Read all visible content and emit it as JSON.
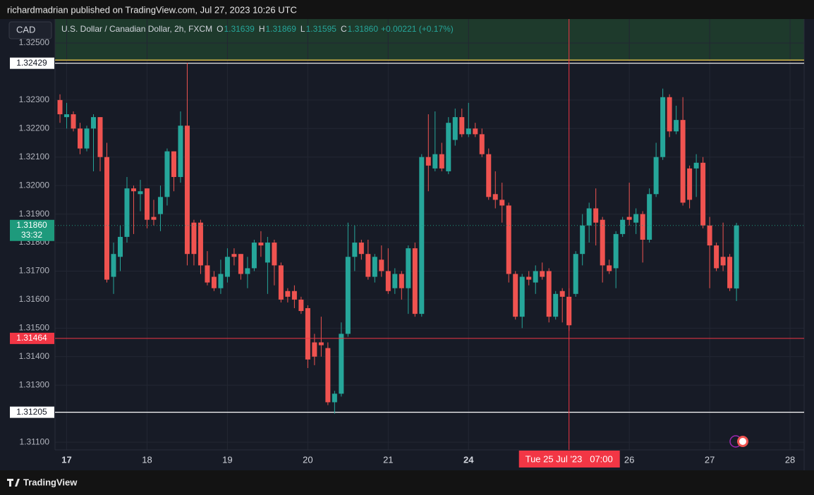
{
  "header": "richardmadrian published on TradingView.com, Jul 27, 2023 10:26 UTC",
  "currency": "CAD",
  "footer": "TradingView",
  "chart_data": {
    "type": "candlestick",
    "legend": {
      "symbol": "U.S. Dollar / Canadian Dollar, 2h, FXCM",
      "ohlc": [
        {
          "name": "O",
          "value": 1.31639
        },
        {
          "name": "H",
          "value": 1.31869
        },
        {
          "name": "L",
          "value": 1.31595
        },
        {
          "name": "C",
          "value": 1.3186,
          "label": "1.31860"
        }
      ],
      "change": "+0.00221 (+0.17%)"
    },
    "up_color": "#26a69a",
    "down_color": "#ef5350",
    "open": [
      1.323,
      1.3224,
      1.3225,
      1.322,
      1.3213,
      1.322,
      1.3224,
      1.321,
      1.3168,
      1.3175,
      1.3182,
      1.3199,
      1.3197,
      1.3199,
      1.3189,
      1.319,
      1.3196,
      1.3212,
      1.3203,
      1.3221,
      1.3187,
      1.3187,
      1.3172,
      1.3168,
      1.3164,
      1.3168,
      1.3176,
      1.3176,
      1.3169,
      1.3171,
      1.318,
      1.3173,
      1.318,
      1.3172,
      1.3163,
      1.3163,
      1.316,
      1.3157,
      1.3145,
      1.3145,
      1.3143,
      1.3124,
      1.3127,
      1.3148,
      1.3175,
      1.318,
      1.3176,
      1.3168,
      1.3174,
      1.317,
      1.3164,
      1.3169,
      1.3164,
      1.3178,
      1.3155,
      1.321,
      1.3206,
      1.3211,
      1.3205,
      1.3216,
      1.3224,
      1.3218,
      1.322,
      1.3218,
      1.3211,
      1.3197,
      1.3195,
      1.3193,
      1.3169,
      1.3154,
      1.3168,
      1.3166,
      1.317,
      1.317,
      1.3154,
      1.3163,
      1.3161,
      1.3162,
      1.3176,
      1.3186,
      1.3192,
      1.3188,
      1.3172,
      1.3171,
      1.3183,
      1.3189,
      1.3187,
      1.319,
      1.3181,
      1.3197,
      1.321,
      1.3231,
      1.3219,
      1.3223,
      1.3206,
      1.3206,
      1.3208,
      1.3186,
      1.3179,
      1.3175,
      1.3175,
      1.31639
    ],
    "high": [
      1.3232,
      1.3229,
      1.3226,
      1.3222,
      1.3221,
      1.3225,
      1.3224,
      1.3215,
      1.318,
      1.3186,
      1.3203,
      1.32,
      1.3202,
      1.3199,
      1.3195,
      1.32,
      1.3213,
      1.3212,
      1.3226,
      1.3243,
      1.3188,
      1.3188,
      1.3177,
      1.317,
      1.3174,
      1.3178,
      1.3178,
      1.3176,
      1.3175,
      1.3181,
      1.3184,
      1.3182,
      1.3181,
      1.3173,
      1.3164,
      1.3165,
      1.3161,
      1.3158,
      1.3148,
      1.3154,
      1.3145,
      1.3128,
      1.3152,
      1.3187,
      1.3186,
      1.3181,
      1.3181,
      1.3176,
      1.3179,
      1.3178,
      1.3171,
      1.317,
      1.3179,
      1.318,
      1.3211,
      1.3225,
      1.3226,
      1.3215,
      1.3224,
      1.3227,
      1.3227,
      1.3229,
      1.3222,
      1.322,
      1.3213,
      1.3205,
      1.3201,
      1.3194,
      1.317,
      1.3169,
      1.317,
      1.3172,
      1.3173,
      1.3171,
      1.3163,
      1.3164,
      1.3164,
      1.3177,
      1.319,
      1.3194,
      1.3199,
      1.3189,
      1.3174,
      1.3184,
      1.3189,
      1.3201,
      1.3192,
      1.3191,
      1.3199,
      1.3215,
      1.3234,
      1.3232,
      1.3228,
      1.3231,
      1.3207,
      1.3211,
      1.321,
      1.3189,
      1.318,
      1.3187,
      1.3176,
      1.31869
    ],
    "low": [
      1.3222,
      1.322,
      1.3219,
      1.3211,
      1.3212,
      1.3205,
      1.3205,
      1.3166,
      1.3162,
      1.317,
      1.318,
      1.3183,
      1.3191,
      1.3185,
      1.3186,
      1.3184,
      1.3193,
      1.3198,
      1.3201,
      1.3172,
      1.3172,
      1.3169,
      1.3165,
      1.3163,
      1.3162,
      1.3166,
      1.3172,
      1.3167,
      1.3164,
      1.317,
      1.3175,
      1.3162,
      1.3165,
      1.3159,
      1.3159,
      1.3157,
      1.3155,
      1.3136,
      1.3137,
      1.314,
      1.3123,
      1.312,
      1.3126,
      1.3147,
      1.317,
      1.3174,
      1.3167,
      1.3166,
      1.3168,
      1.3162,
      1.3162,
      1.316,
      1.3155,
      1.3154,
      1.3154,
      1.3198,
      1.3205,
      1.3205,
      1.3204,
      1.3214,
      1.3217,
      1.3217,
      1.3217,
      1.321,
      1.3195,
      1.3192,
      1.3187,
      1.3166,
      1.3153,
      1.315,
      1.3165,
      1.3162,
      1.3167,
      1.3152,
      1.3153,
      1.3152,
      1.3149,
      1.3161,
      1.3172,
      1.318,
      1.3179,
      1.3166,
      1.3169,
      1.3164,
      1.3182,
      1.3186,
      1.3183,
      1.3173,
      1.318,
      1.3196,
      1.3209,
      1.3217,
      1.3218,
      1.3193,
      1.3192,
      1.3196,
      1.3185,
      1.3164,
      1.317,
      1.317,
      1.3163,
      1.31595
    ],
    "close": [
      1.3225,
      1.3225,
      1.322,
      1.3213,
      1.322,
      1.3224,
      1.321,
      1.3167,
      1.3176,
      1.3182,
      1.3199,
      1.3198,
      1.3198,
      1.3188,
      1.3188,
      1.3196,
      1.3212,
      1.3203,
      1.3221,
      1.3176,
      1.3176,
      1.3172,
      1.3166,
      1.3164,
      1.3169,
      1.3175,
      1.3175,
      1.3169,
      1.3171,
      1.318,
      1.3179,
      1.318,
      1.3172,
      1.316,
      1.3161,
      1.316,
      1.3156,
      1.3139,
      1.314,
      1.3144,
      1.3124,
      1.3127,
      1.3148,
      1.3175,
      1.318,
      1.3176,
      1.3168,
      1.3175,
      1.317,
      1.3163,
      1.3169,
      1.3164,
      1.3178,
      1.3155,
      1.321,
      1.3207,
      1.3211,
      1.3206,
      1.3222,
      1.3224,
      1.3218,
      1.322,
      1.3218,
      1.3211,
      1.3196,
      1.3195,
      1.3193,
      1.3169,
      1.3154,
      1.3168,
      1.3167,
      1.317,
      1.3168,
      1.3154,
      1.3162,
      1.3161,
      1.3151,
      1.3176,
      1.3186,
      1.3192,
      1.3187,
      1.3172,
      1.317,
      1.3183,
      1.3188,
      1.3188,
      1.319,
      1.3181,
      1.3197,
      1.321,
      1.3231,
      1.3219,
      1.3223,
      1.3194,
      1.3195,
      1.3208,
      1.3186,
      1.3179,
      1.3171,
      1.3172,
      1.3164,
      1.3186
    ],
    "xlim": [
      -0.74,
      111.1
    ],
    "xticks": [
      {
        "value": 1,
        "label": "17"
      },
      {
        "value": 13,
        "label": "18"
      },
      {
        "value": 25,
        "label": "19"
      },
      {
        "value": 37,
        "label": "20"
      },
      {
        "value": 49,
        "label": "21"
      },
      {
        "value": 61,
        "label": "24"
      },
      {
        "value": 85,
        "label": "26"
      },
      {
        "value": 97,
        "label": "27"
      },
      {
        "value": 109,
        "label": "28"
      }
    ],
    "ylim": [
      1.31073,
      1.32584
    ],
    "yticks": [
      {
        "value": 1.325,
        "label": "1.32500"
      },
      {
        "value": 1.323,
        "label": "1.32300"
      },
      {
        "value": 1.322,
        "label": "1.32200"
      },
      {
        "value": 1.321,
        "label": "1.32100"
      },
      {
        "value": 1.32,
        "label": "1.32000"
      },
      {
        "value": 1.319,
        "label": "1.31900"
      },
      {
        "value": 1.318,
        "label": "1.31800"
      },
      {
        "value": 1.317,
        "label": "1.31700"
      },
      {
        "value": 1.316,
        "label": "1.31600"
      },
      {
        "value": 1.315,
        "label": "1.31500"
      },
      {
        "value": 1.314,
        "label": "1.31400"
      },
      {
        "value": 1.313,
        "label": "1.31300"
      },
      {
        "value": 1.311,
        "label": "1.31100"
      }
    ],
    "grid": true,
    "zone": {
      "value": 1.3244,
      "color": "#d8b84a",
      "fill": "#1e3a2c"
    },
    "levels": [
      {
        "value": 1.32429,
        "label": "1.32429",
        "color": "#ffffff"
      },
      {
        "value": 1.31205,
        "label": "1.31205",
        "color": "#ffffff"
      }
    ],
    "last_price": {
      "value": 1.3186,
      "label": "1.31860",
      "countdown": "33:32",
      "color": "#1e9a7c"
    },
    "crosshair": {
      "x": 76,
      "x_label": "Tue 25 Jul '23   07:00",
      "y": 1.31464,
      "y_label": "1.31464",
      "color": "#f23645"
    }
  }
}
